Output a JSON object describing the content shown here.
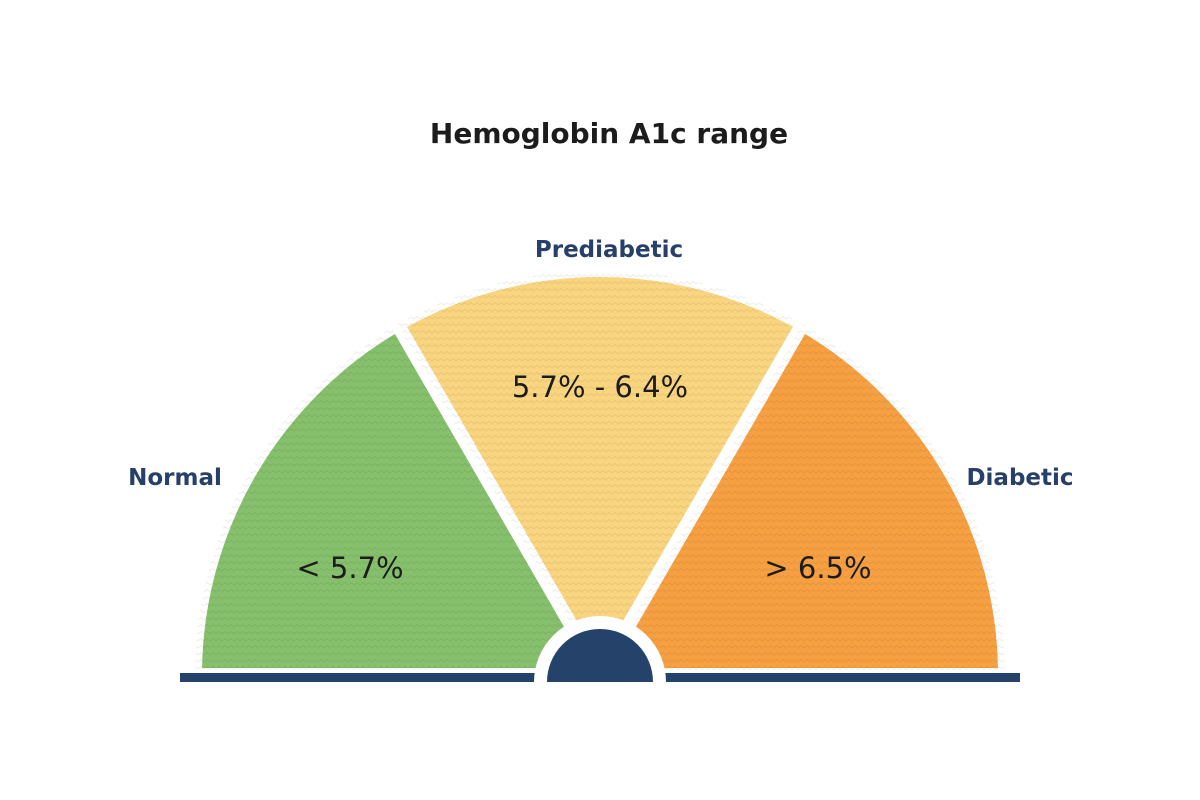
{
  "title": "Hemoglobin A1c range",
  "segments": [
    {
      "label": "Normal",
      "range": "< 5.7%"
    },
    {
      "label": "Prediabetic",
      "range": "5.7% - 6.4%"
    },
    {
      "label": "Diabetic",
      "range": "> 6.5%"
    }
  ]
}
